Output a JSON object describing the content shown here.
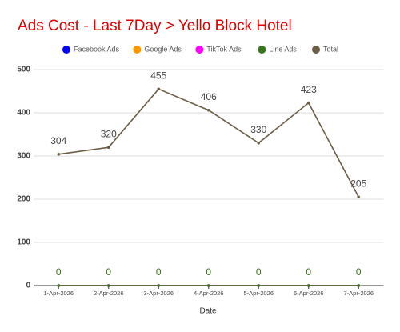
{
  "chart_data": {
    "type": "line",
    "title": "Ads Cost - Last 7Day > Yello Block Hotel",
    "x_label": "Date",
    "categories": [
      "1-Apr-2026",
      "2-Apr-2026",
      "3-Apr-2026",
      "4-Apr-2026",
      "5-Apr-2026",
      "6-Apr-2026",
      "7-Apr-2026"
    ],
    "series": [
      {
        "name": "Facebook Ads",
        "color": "#0000ff",
        "values": [
          0,
          0,
          0,
          0,
          0,
          0,
          0
        ]
      },
      {
        "name": "Google Ads",
        "color": "#ff9900",
        "values": [
          0,
          0,
          0,
          0,
          0,
          0,
          0
        ]
      },
      {
        "name": "TikTok Ads",
        "color": "#ff00ff",
        "values": [
          0,
          0,
          0,
          0,
          0,
          0,
          0
        ]
      },
      {
        "name": "Line Ads",
        "color": "#38761d",
        "values": [
          0,
          0,
          0,
          0,
          0,
          0,
          0
        ],
        "data_labels": true
      },
      {
        "name": "Total",
        "color": "#6b5d45",
        "values": [
          304,
          320,
          455,
          406,
          330,
          423,
          205
        ],
        "data_labels": true
      }
    ],
    "ylim": [
      0,
      500
    ],
    "yticks": [
      0,
      100,
      200,
      300,
      400,
      500
    ],
    "grid": true,
    "legend": "top"
  }
}
